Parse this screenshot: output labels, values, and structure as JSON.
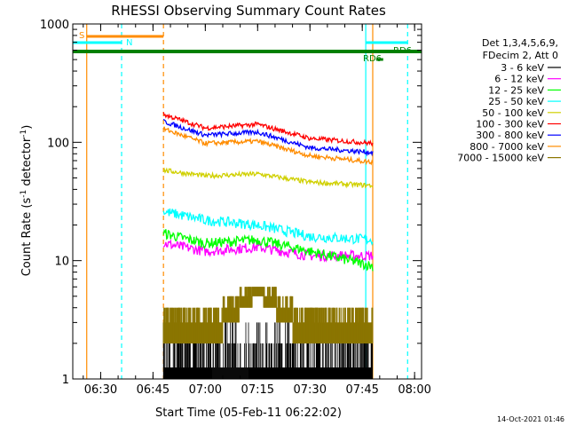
{
  "chart_data": {
    "type": "line",
    "title": "RHESSI Observing Summary Count Rates",
    "xlabel": "Start Time (05-Feb-11 06:22:02)",
    "ylabel_main": "Count Rate (s",
    "ylabel_sup1": "-1",
    "ylabel_mid": " detector",
    "ylabel_sup2": "-1",
    "ylabel_end": ")",
    "yscale": "log",
    "ylim": [
      1,
      1000
    ],
    "xlim": [
      "06:22",
      "08:02"
    ],
    "x_ticks": [
      "06:30",
      "06:45",
      "07:00",
      "07:15",
      "07:30",
      "07:45",
      "08:00"
    ],
    "y_ticks": [
      "1",
      "10",
      "100",
      "1000"
    ],
    "legend_header": [
      "Det 1,3,4,5,6,9,",
      "FDecim 2, Att 0"
    ],
    "series": [
      {
        "name": "3 - 6 keV",
        "color": "#000000",
        "x": [
          "06:48",
          "07:48"
        ],
        "approx": [
          1.4,
          1.2
        ]
      },
      {
        "name": "6 - 12 keV",
        "color": "#ff00ff",
        "x": [
          "06:48",
          "07:00",
          "07:15",
          "07:30",
          "07:48"
        ],
        "values": [
          14,
          12,
          13,
          11,
          11
        ]
      },
      {
        "name": "12 - 25 keV",
        "color": "#00ff00",
        "x": [
          "06:48",
          "07:00",
          "07:15",
          "07:30",
          "07:48"
        ],
        "values": [
          17,
          14,
          15,
          12,
          9
        ]
      },
      {
        "name": "25 - 50 keV",
        "color": "#00ffff",
        "x": [
          "06:48",
          "07:00",
          "07:15",
          "07:30",
          "07:48"
        ],
        "values": [
          26,
          22,
          20,
          16,
          15
        ]
      },
      {
        "name": "50 - 100 keV",
        "color": "#d0d000",
        "x": [
          "06:48",
          "07:00",
          "07:15",
          "07:30",
          "07:48"
        ],
        "values": [
          58,
          52,
          54,
          46,
          43
        ]
      },
      {
        "name": "100 - 300 keV",
        "color": "#ff0000",
        "x": [
          "06:48",
          "07:00",
          "07:15",
          "07:30",
          "07:48"
        ],
        "values": [
          172,
          132,
          142,
          108,
          98
        ]
      },
      {
        "name": "300 - 800 keV",
        "color": "#0000ff",
        "x": [
          "06:48",
          "07:00",
          "07:15",
          "07:30",
          "07:48"
        ],
        "values": [
          150,
          115,
          122,
          90,
          82
        ]
      },
      {
        "name": "800 - 7000 keV",
        "color": "#ff8c00",
        "x": [
          "06:48",
          "07:00",
          "07:15",
          "07:30",
          "07:48"
        ],
        "values": [
          130,
          98,
          102,
          77,
          68
        ]
      },
      {
        "name": "7000 - 15000 keV",
        "color": "#8b7500",
        "x": [
          "06:48",
          "07:05",
          "07:15",
          "07:25",
          "07:48"
        ],
        "values": [
          2.5,
          3.5,
          6,
          3.5,
          2.5
        ]
      }
    ],
    "annotations": [
      {
        "text": "S",
        "color": "#ff8c00"
      },
      {
        "text": "N",
        "color": "#00ffff"
      },
      {
        "text": "RD6",
        "color": "#008000"
      },
      {
        "text": "RD6",
        "color": "#008000"
      }
    ],
    "vertical_markers": [
      {
        "x": "06:26",
        "color": "#ff8c00",
        "style": "solid"
      },
      {
        "x": "06:36",
        "color": "#00ffff",
        "style": "dashed"
      },
      {
        "x": "06:48",
        "color": "#ff8c00",
        "style": "dashed"
      },
      {
        "x": "07:46",
        "color": "#00ffff",
        "style": "solid"
      },
      {
        "x": "07:48",
        "color": "#ff8c00",
        "style": "solid"
      },
      {
        "x": "07:58",
        "color": "#00ffff",
        "style": "dashed"
      }
    ],
    "grid": false,
    "legend_position": "right"
  },
  "footer_timestamp": "14-Oct-2021 01:46"
}
